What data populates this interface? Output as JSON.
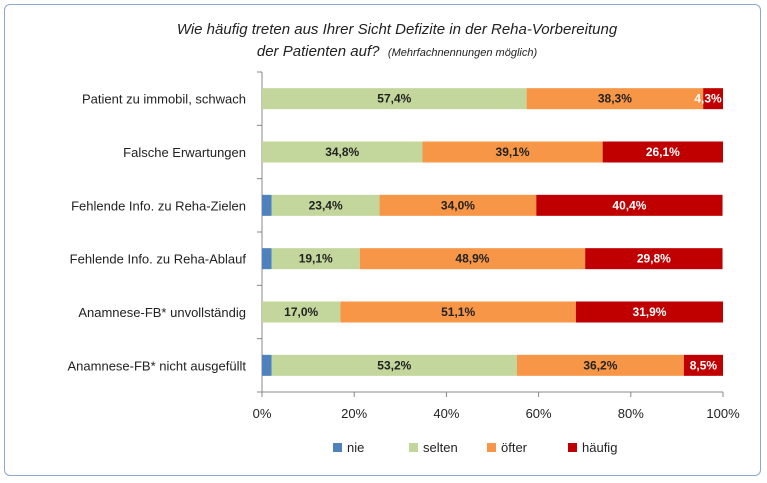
{
  "chart_data": {
    "type": "bar",
    "stacked": true,
    "orientation": "horizontal",
    "title_line1": "Wie häufig treten aus Ihrer Sicht Defizite in der Reha-Vorbereitung",
    "title_line2_main": "der Patienten auf?",
    "title_line2_note": "(Mehrfachnennungen möglich)",
    "categories": [
      "Patient zu immobil, schwach",
      "Falsche Erwartungen",
      "Fehlende Info. zu Reha-Zielen",
      "Fehlende Info. zu Reha-Ablauf",
      "Anamnese-FB* unvollständig",
      "Anamnese-FB* nicht ausgefüllt"
    ],
    "series": [
      {
        "name": "nie",
        "color": "#4f81bd",
        "values": [
          0,
          0,
          2.1,
          2.1,
          0,
          2.1
        ],
        "labels": [
          "",
          "",
          "",
          "",
          "",
          ""
        ]
      },
      {
        "name": "selten",
        "color": "#c3d69b",
        "values": [
          57.4,
          34.8,
          23.4,
          19.1,
          17.0,
          53.2
        ],
        "labels": [
          "57,4%",
          "34,8%",
          "23,4%",
          "19,1%",
          "17,0%",
          "53,2%"
        ]
      },
      {
        "name": "öfter",
        "color": "#f79646",
        "values": [
          38.3,
          39.1,
          34.0,
          48.9,
          51.1,
          36.2
        ],
        "labels": [
          "38,3%",
          "39,1%",
          "34,0%",
          "48,9%",
          "51,1%",
          "36,2%"
        ]
      },
      {
        "name": "häufig",
        "color": "#c00000",
        "values": [
          4.3,
          26.1,
          40.4,
          29.8,
          31.9,
          8.5
        ],
        "labels": [
          "4,3%",
          "26,1%",
          "40,4%",
          "29,8%",
          "31,9%",
          "8,5%"
        ]
      }
    ],
    "x_ticks": [
      "0%",
      "20%",
      "40%",
      "60%",
      "80%",
      "100%"
    ],
    "xlim": [
      0,
      100
    ],
    "grid": false,
    "legend_position": "bottom"
  }
}
